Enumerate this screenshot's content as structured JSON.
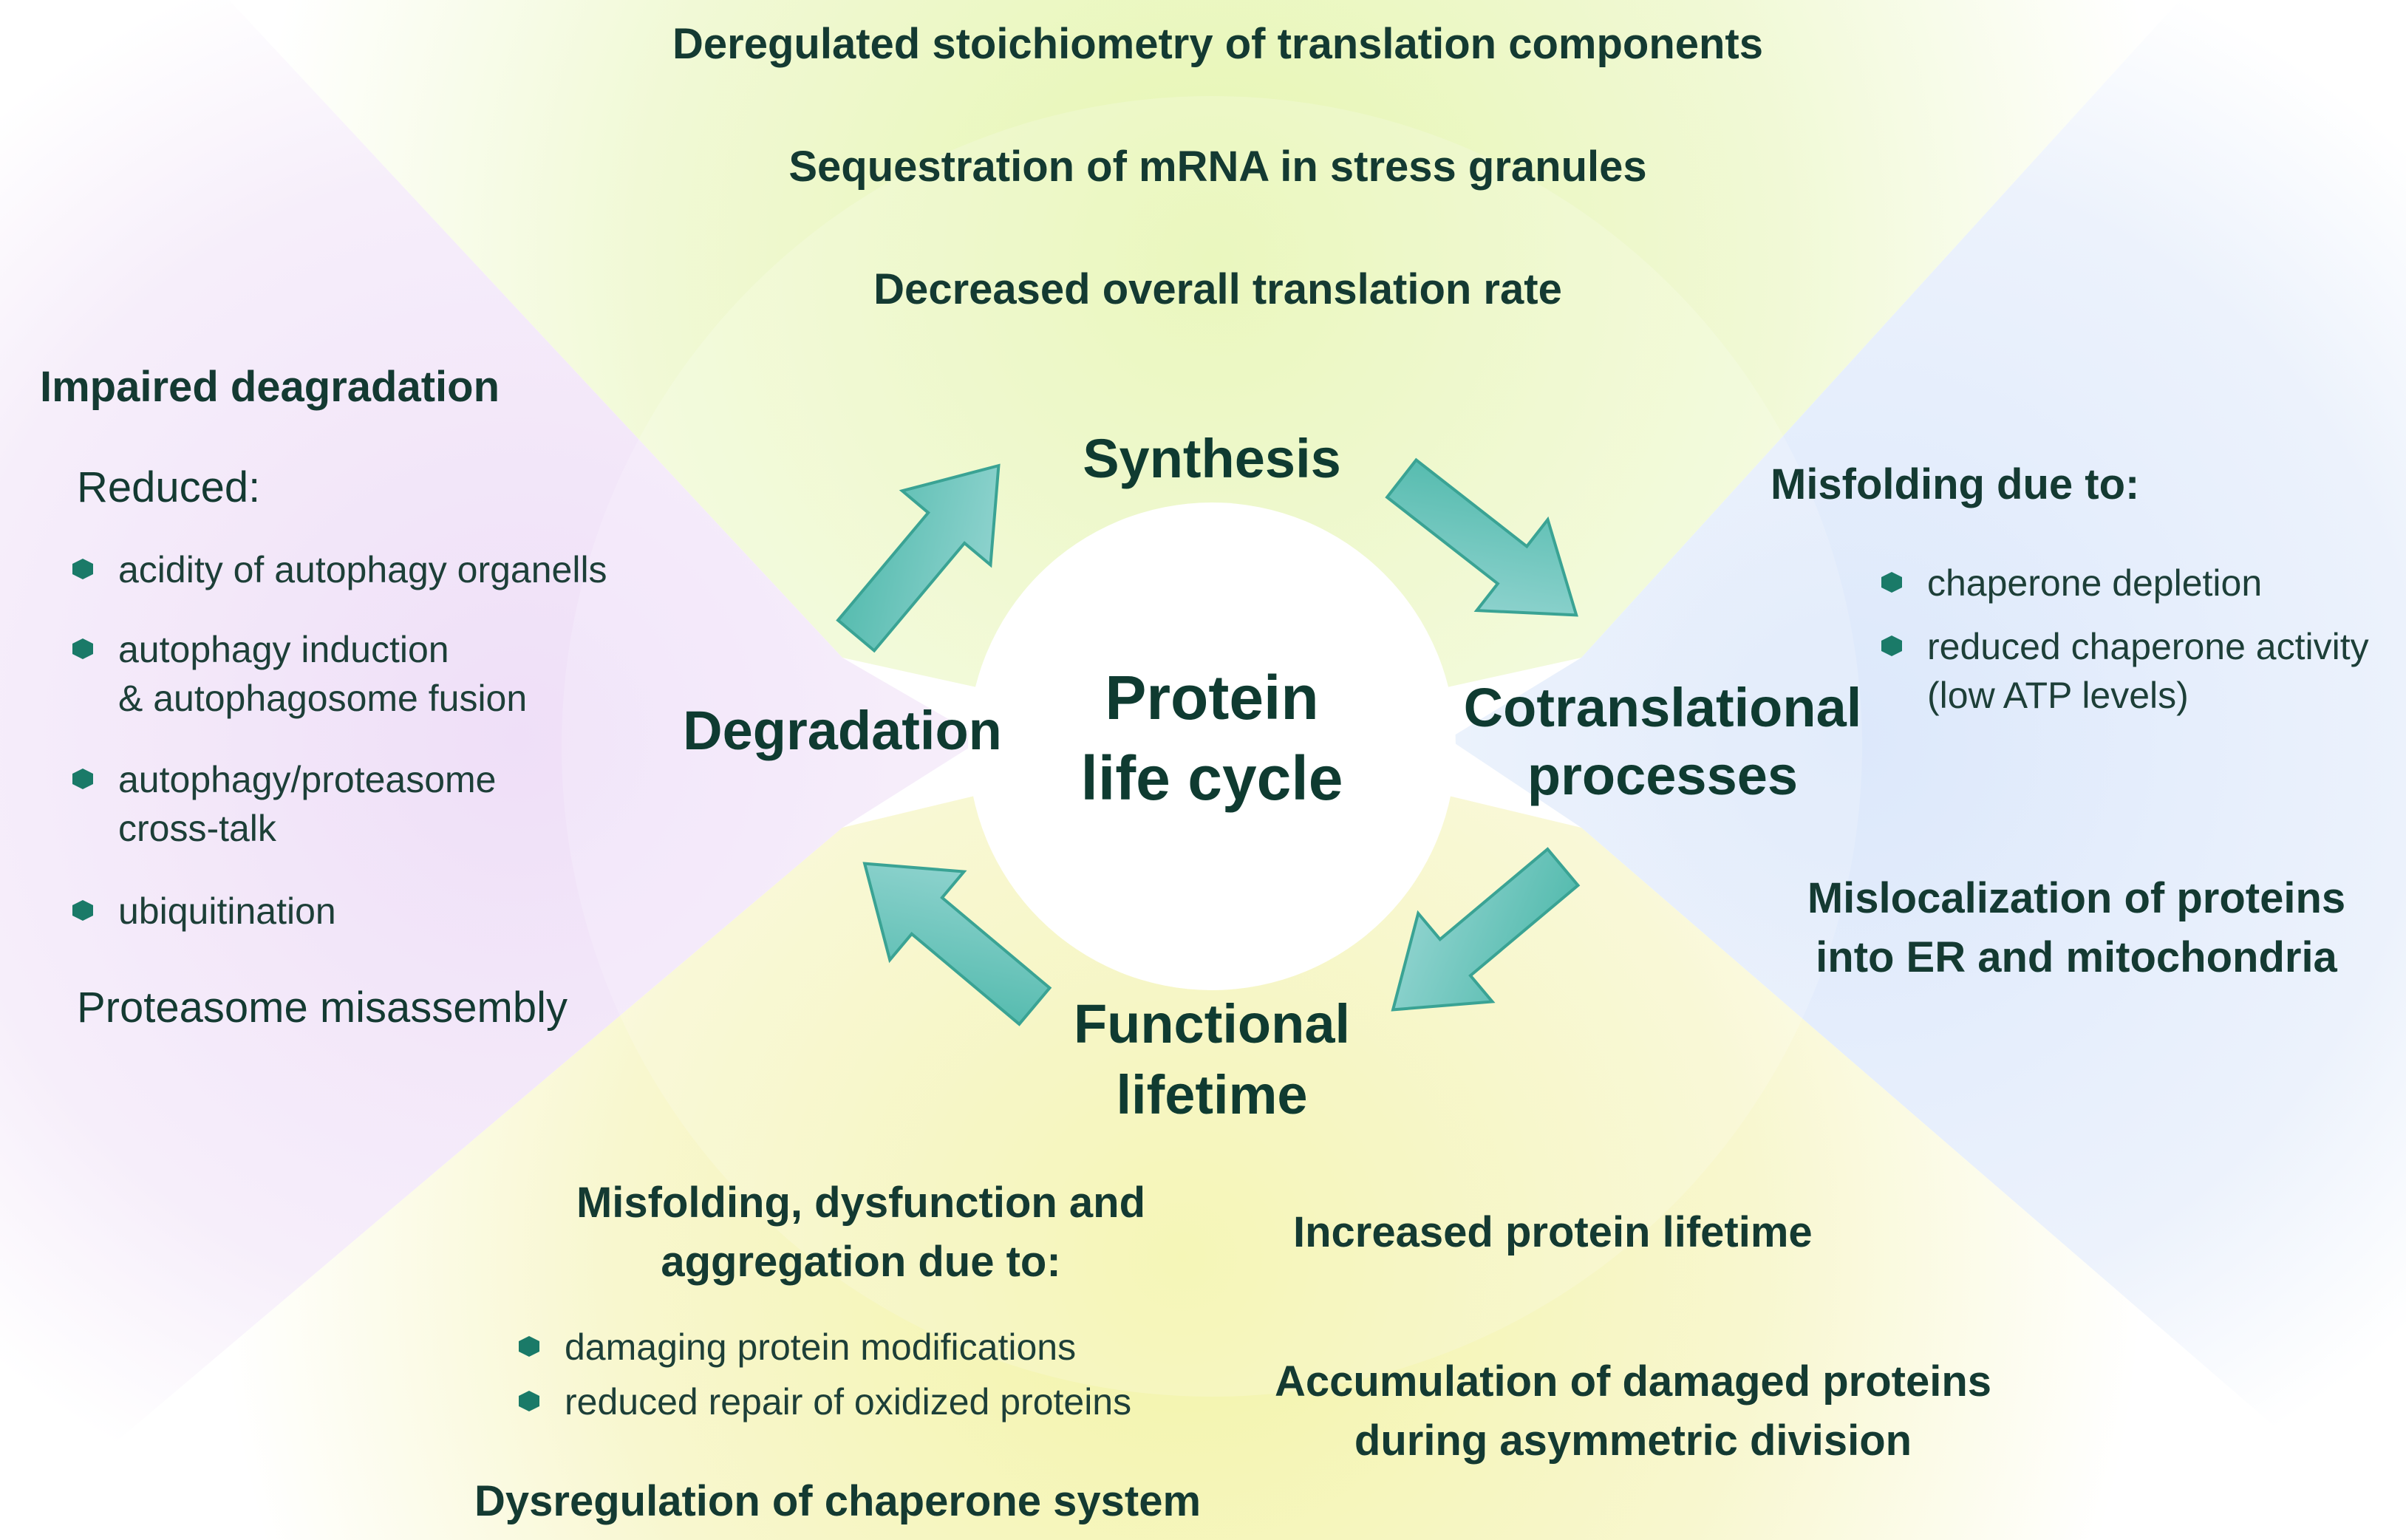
{
  "colors": {
    "top_region": "#eaf7c4",
    "left_region": "#f2e4f8",
    "right_region": "#e2ebfb",
    "bottom_region": "#f7f5c0",
    "arrow": "#5fc0b4",
    "text": "#143a32"
  },
  "center": {
    "line1": "Protein",
    "line2": "life cycle"
  },
  "stages": {
    "synthesis": "Synthesis",
    "cotranslational": {
      "line1": "Cotranslational",
      "line2": "processes"
    },
    "functional": {
      "line1": "Functional",
      "line2": "lifetime"
    },
    "degradation": "Degradation"
  },
  "synthesis_notes": [
    "Deregulated stoichiometry of translation components",
    "Sequestration of mRNA in stress granules",
    "Decreased overall translation rate"
  ],
  "cotranslational_notes": {
    "heading": "Misfolding due to:",
    "bullets": [
      {
        "line1": "chaperone depletion",
        "line2": ""
      },
      {
        "line1": "reduced chaperone activity",
        "line2": "(low ATP levels)"
      }
    ],
    "mislocalization": {
      "line1": "Mislocalization of proteins",
      "line2": "into ER and mitochondria"
    }
  },
  "degradation_notes": {
    "heading": "Impaired deagradation",
    "reduced": "Reduced:",
    "bullets": [
      {
        "line1": "acidity of autophagy organells",
        "line2": ""
      },
      {
        "line1": "autophagy induction",
        "line2": "& autophagosome fusion"
      },
      {
        "line1": "autophagy/proteasome",
        "line2": "cross-talk"
      },
      {
        "line1": "ubiquitination",
        "line2": ""
      }
    ],
    "misassembly": "Proteasome misassembly"
  },
  "functional_notes": {
    "misfolding": {
      "line1": "Misfolding, dysfunction and",
      "line2": "aggregation due to:"
    },
    "bullets": [
      "damaging protein modifications",
      "reduced repair of oxidized proteins"
    ],
    "increased": "Increased protein lifetime",
    "accumulation": {
      "line1": "Accumulation of damaged proteins",
      "line2": "during asymmetric division"
    },
    "dysregulation": "Dysregulation of chaperone system"
  }
}
